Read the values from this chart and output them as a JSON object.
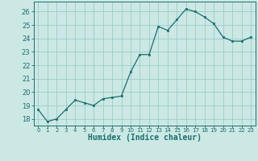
{
  "x": [
    0,
    1,
    2,
    3,
    4,
    5,
    6,
    7,
    8,
    9,
    10,
    11,
    12,
    13,
    14,
    15,
    16,
    17,
    18,
    19,
    20,
    21,
    22,
    23
  ],
  "y": [
    18.7,
    17.8,
    18.0,
    18.7,
    19.4,
    19.2,
    19.0,
    19.5,
    19.6,
    19.7,
    21.5,
    22.8,
    22.8,
    24.9,
    24.6,
    25.4,
    26.2,
    26.0,
    25.6,
    25.1,
    24.1,
    23.8,
    23.8,
    24.1
  ],
  "xlabel": "Humidex (Indice chaleur)",
  "bg_color": "#cce8e4",
  "line_color": "#1a6e6e",
  "marker_color": "#1a6e6e",
  "grid_color": "#99cccc",
  "tick_color": "#1a6e6e",
  "spine_color": "#1a6e6e",
  "ylim_min": 17.5,
  "ylim_max": 26.75,
  "xlim_min": -0.5,
  "xlim_max": 23.5,
  "yticks": [
    18,
    19,
    20,
    21,
    22,
    23,
    24,
    25,
    26
  ],
  "xticks": [
    0,
    1,
    2,
    3,
    4,
    5,
    6,
    7,
    8,
    9,
    10,
    11,
    12,
    13,
    14,
    15,
    16,
    17,
    18,
    19,
    20,
    21,
    22,
    23
  ]
}
